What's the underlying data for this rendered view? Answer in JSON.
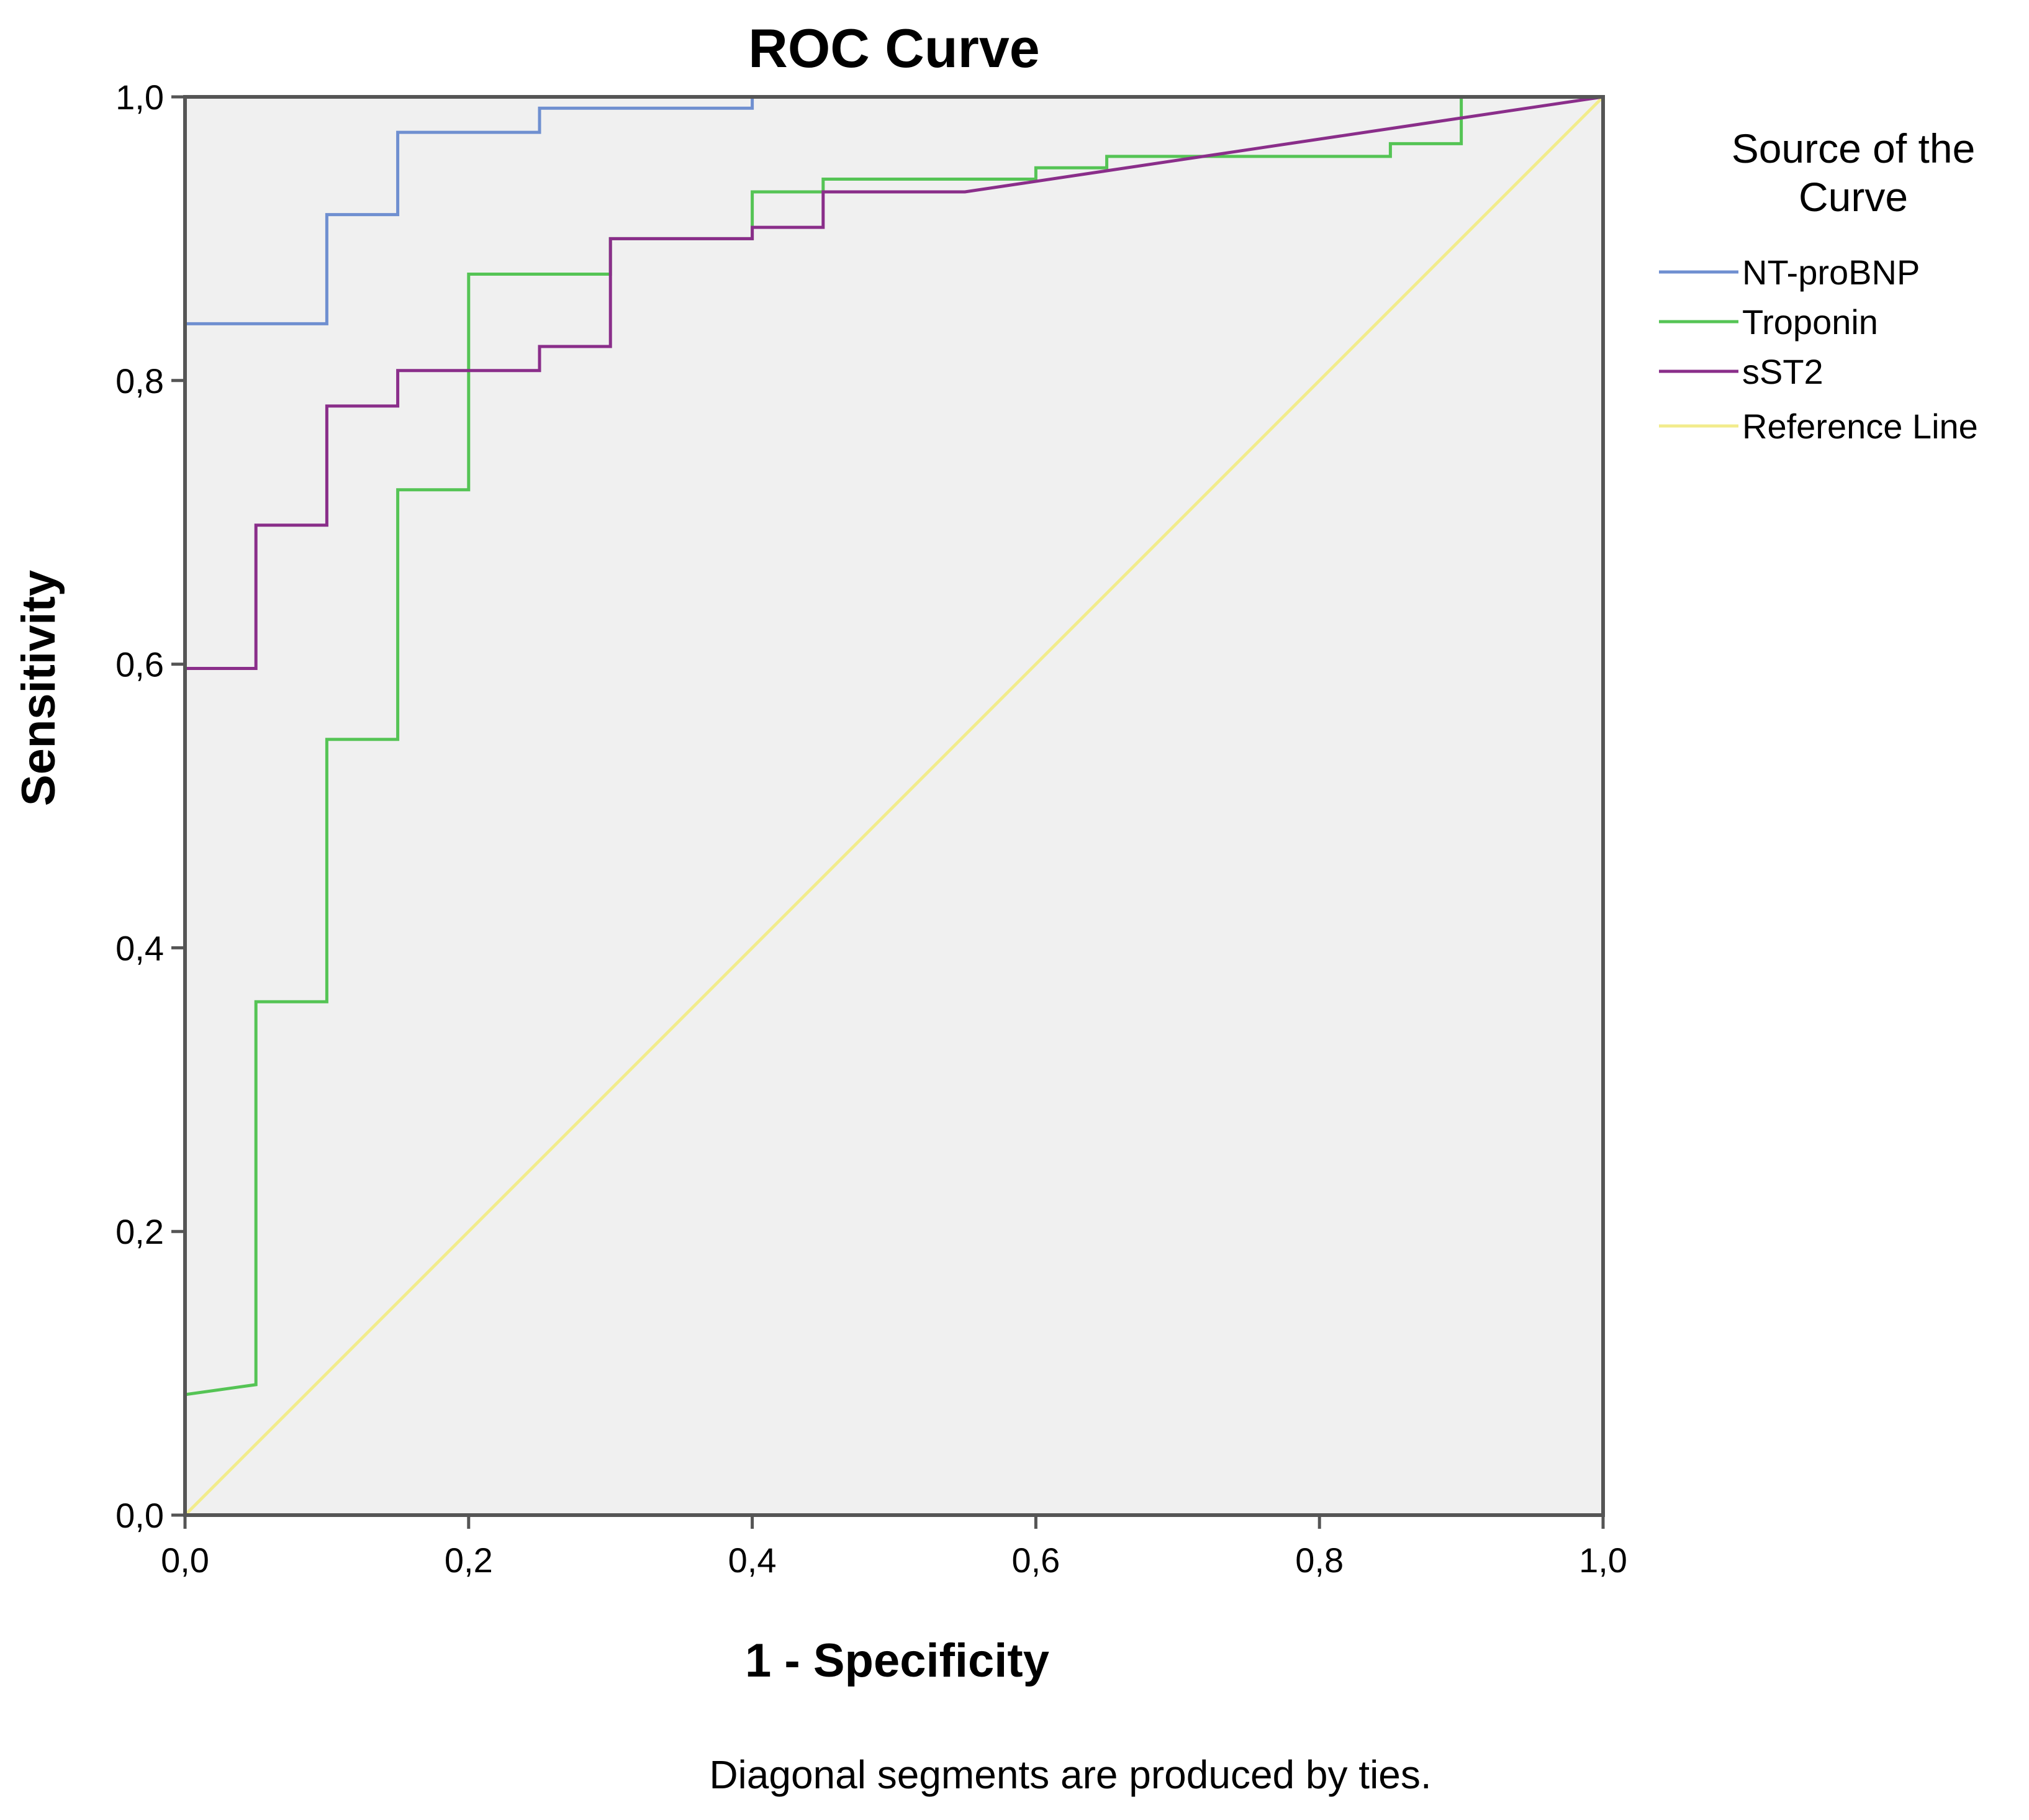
{
  "chart_data": {
    "type": "line",
    "title": "ROC Curve",
    "xlabel": "1 - Specificity",
    "ylabel": "Sensitivity",
    "xlim": [
      0,
      1
    ],
    "ylim": [
      0,
      1
    ],
    "x_ticks": [
      "0,0",
      "0,2",
      "0,4",
      "0,6",
      "0,8",
      "1,0"
    ],
    "y_ticks": [
      "0,0",
      "0,2",
      "0,4",
      "0,6",
      "0,8",
      "1,0"
    ],
    "legend": {
      "title_lines": [
        "Source of the",
        "Curve"
      ],
      "placement": "right"
    },
    "grid": false,
    "footnote": "Diagonal segments are produced by ties.",
    "series": [
      {
        "name": "NT-proBNP",
        "color": "#6f8fd0",
        "points": [
          [
            0,
            0
          ],
          [
            0,
            0.84
          ],
          [
            0.1,
            0.84
          ],
          [
            0.1,
            0.917
          ],
          [
            0.15,
            0.917
          ],
          [
            0.15,
            0.975
          ],
          [
            0.25,
            0.975
          ],
          [
            0.25,
            0.992
          ],
          [
            0.4,
            0.992
          ],
          [
            0.4,
            1
          ],
          [
            1,
            1
          ]
        ]
      },
      {
        "name": "Troponin",
        "color": "#55c455",
        "points": [
          [
            0,
            0
          ],
          [
            0,
            0.085
          ],
          [
            0.05,
            0.092
          ],
          [
            0.05,
            0.362
          ],
          [
            0.1,
            0.362
          ],
          [
            0.1,
            0.547
          ],
          [
            0.15,
            0.547
          ],
          [
            0.15,
            0.723
          ],
          [
            0.2,
            0.723
          ],
          [
            0.2,
            0.875
          ],
          [
            0.3,
            0.875
          ],
          [
            0.3,
            0.9
          ],
          [
            0.4,
            0.9
          ],
          [
            0.4,
            0.933
          ],
          [
            0.45,
            0.933
          ],
          [
            0.45,
            0.942
          ],
          [
            0.6,
            0.942
          ],
          [
            0.6,
            0.95
          ],
          [
            0.65,
            0.95
          ],
          [
            0.65,
            0.958
          ],
          [
            0.85,
            0.958
          ],
          [
            0.85,
            0.967
          ],
          [
            0.9,
            0.967
          ],
          [
            0.9,
            1
          ],
          [
            1,
            1
          ]
        ]
      },
      {
        "name": "sST2",
        "color": "#8a2e8a",
        "points": [
          [
            0,
            0
          ],
          [
            0,
            0.597
          ],
          [
            0.05,
            0.597
          ],
          [
            0.05,
            0.698
          ],
          [
            0.1,
            0.698
          ],
          [
            0.1,
            0.782
          ],
          [
            0.15,
            0.782
          ],
          [
            0.15,
            0.807
          ],
          [
            0.25,
            0.807
          ],
          [
            0.25,
            0.824
          ],
          [
            0.3,
            0.824
          ],
          [
            0.3,
            0.9
          ],
          [
            0.4,
            0.9
          ],
          [
            0.4,
            0.908
          ],
          [
            0.45,
            0.908
          ],
          [
            0.45,
            0.933
          ],
          [
            0.55,
            0.933
          ],
          [
            1,
            1
          ]
        ]
      },
      {
        "name": "Reference Line",
        "color": "#f2ec8c",
        "points": [
          [
            0,
            0
          ],
          [
            1,
            1
          ]
        ]
      }
    ]
  }
}
